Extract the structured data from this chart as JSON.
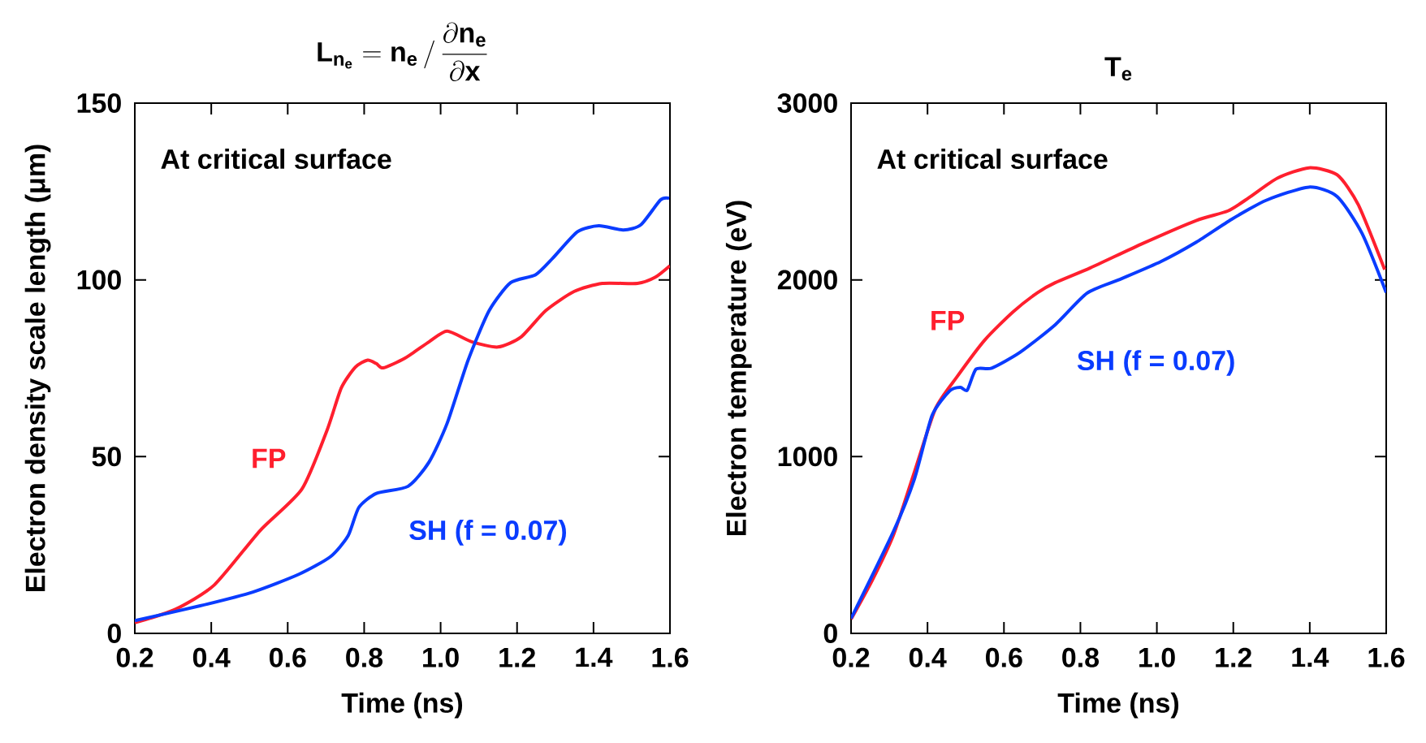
{
  "chart_data": [
    {
      "type": "line",
      "title": "\\mathbf{L}_{\\mathbf{n}_{\\mathbf{e}}} = \\mathbf{n}_{\\mathbf{e}}\\,/\\,\\frac{\\partial \\mathbf{n}_{\\mathbf{e}}}{\\partial \\mathbf{x}}",
      "xlabel": "Time (ns)",
      "ylabel": "Electron density scale length (μm)",
      "annotations": [
        "At critical surface"
      ],
      "xlim": [
        0.2,
        1.6
      ],
      "ylim": [
        0,
        150
      ],
      "xticks": [
        0.2,
        0.4,
        0.6,
        0.8,
        {
          "value": 1,
          "label": "1.0"
        },
        1.2,
        1.4,
        1.6
      ],
      "yticks": [
        0,
        50,
        100,
        150
      ],
      "grid": false,
      "legend": false,
      "line_style": "solid",
      "series": [
        {
          "name": "FP",
          "color": "#ff1f2e",
          "x": [
            0.2,
            0.306,
            0.408,
            0.528,
            0.637,
            0.703,
            0.74,
            0.777,
            0.809,
            0.832,
            0.85,
            0.906,
            0.97,
            1.017,
            1.081,
            1.15,
            1.21,
            1.275,
            1.349,
            1.423,
            1.515,
            1.561,
            1.6
          ],
          "values": [
            3.0,
            6.8,
            13.7,
            29.1,
            40.8,
            57.5,
            69.4,
            75.3,
            77.3,
            76.3,
            75.1,
            77.8,
            82.5,
            85.5,
            82.5,
            81.0,
            83.8,
            91.3,
            96.7,
            99.0,
            99.0,
            100.7,
            104.0
          ]
        },
        {
          "name": "SH (f = 0.07)",
          "color": "#0a3cff",
          "x": [
            0.2,
            0.371,
            0.509,
            0.629,
            0.712,
            0.758,
            0.786,
            0.832,
            0.915,
            0.97,
            1.017,
            1.072,
            1.127,
            1.183,
            1.248,
            1.294,
            1.358,
            1.414,
            1.478,
            1.524,
            1.575,
            1.598
          ],
          "values": [
            3.6,
            7.8,
            11.7,
            16.7,
            21.7,
            27.6,
            35.6,
            39.6,
            41.6,
            48.5,
            59.4,
            77.3,
            91.3,
            99.2,
            101.4,
            106.2,
            113.6,
            115.3,
            114.1,
            115.6,
            122.6,
            123.1
          ]
        }
      ]
    },
    {
      "type": "line",
      "title": "T$_{e}$",
      "xlabel": "Time (ns)",
      "ylabel": "Electron temperature (eV)",
      "annotations": [
        "At critical surface"
      ],
      "xlim": [
        0.2,
        1.6
      ],
      "ylim": [
        0,
        3000
      ],
      "xticks": [
        0.2,
        0.4,
        0.6,
        0.8,
        {
          "value": 1,
          "label": "1.0"
        },
        1.2,
        1.4,
        1.6
      ],
      "yticks": [
        0,
        1000,
        2000,
        3000
      ],
      "grid": false,
      "legend": false,
      "line_style": "solid",
      "series": [
        {
          "name": "FP",
          "color": "#ff1f2e",
          "x": [
            0.2,
            0.255,
            0.311,
            0.366,
            0.421,
            0.477,
            0.55,
            0.624,
            0.688,
            0.734,
            0.826,
            0.964,
            1.103,
            1.186,
            1.241,
            1.315,
            1.398,
            1.472,
            1.527,
            1.596
          ],
          "values": [
            80,
            298,
            557,
            915,
            1272,
            1451,
            1660,
            1819,
            1928,
            1984,
            2068,
            2207,
            2336,
            2390,
            2465,
            2575,
            2634,
            2594,
            2425,
            2058
          ]
        },
        {
          "name": "SH (f = 0.07)",
          "color": "#0a3cff",
          "x": [
            0.2,
            0.311,
            0.366,
            0.412,
            0.458,
            0.486,
            0.504,
            0.527,
            0.568,
            0.642,
            0.734,
            0.817,
            0.9,
            1.01,
            1.103,
            1.195,
            1.287,
            1.398,
            1.472,
            1.537,
            1.6
          ],
          "values": [
            84,
            577,
            875,
            1233,
            1372,
            1392,
            1376,
            1495,
            1501,
            1590,
            1746,
            1924,
            2000,
            2103,
            2213,
            2342,
            2451,
            2525,
            2471,
            2262,
            1928
          ]
        }
      ]
    }
  ]
}
